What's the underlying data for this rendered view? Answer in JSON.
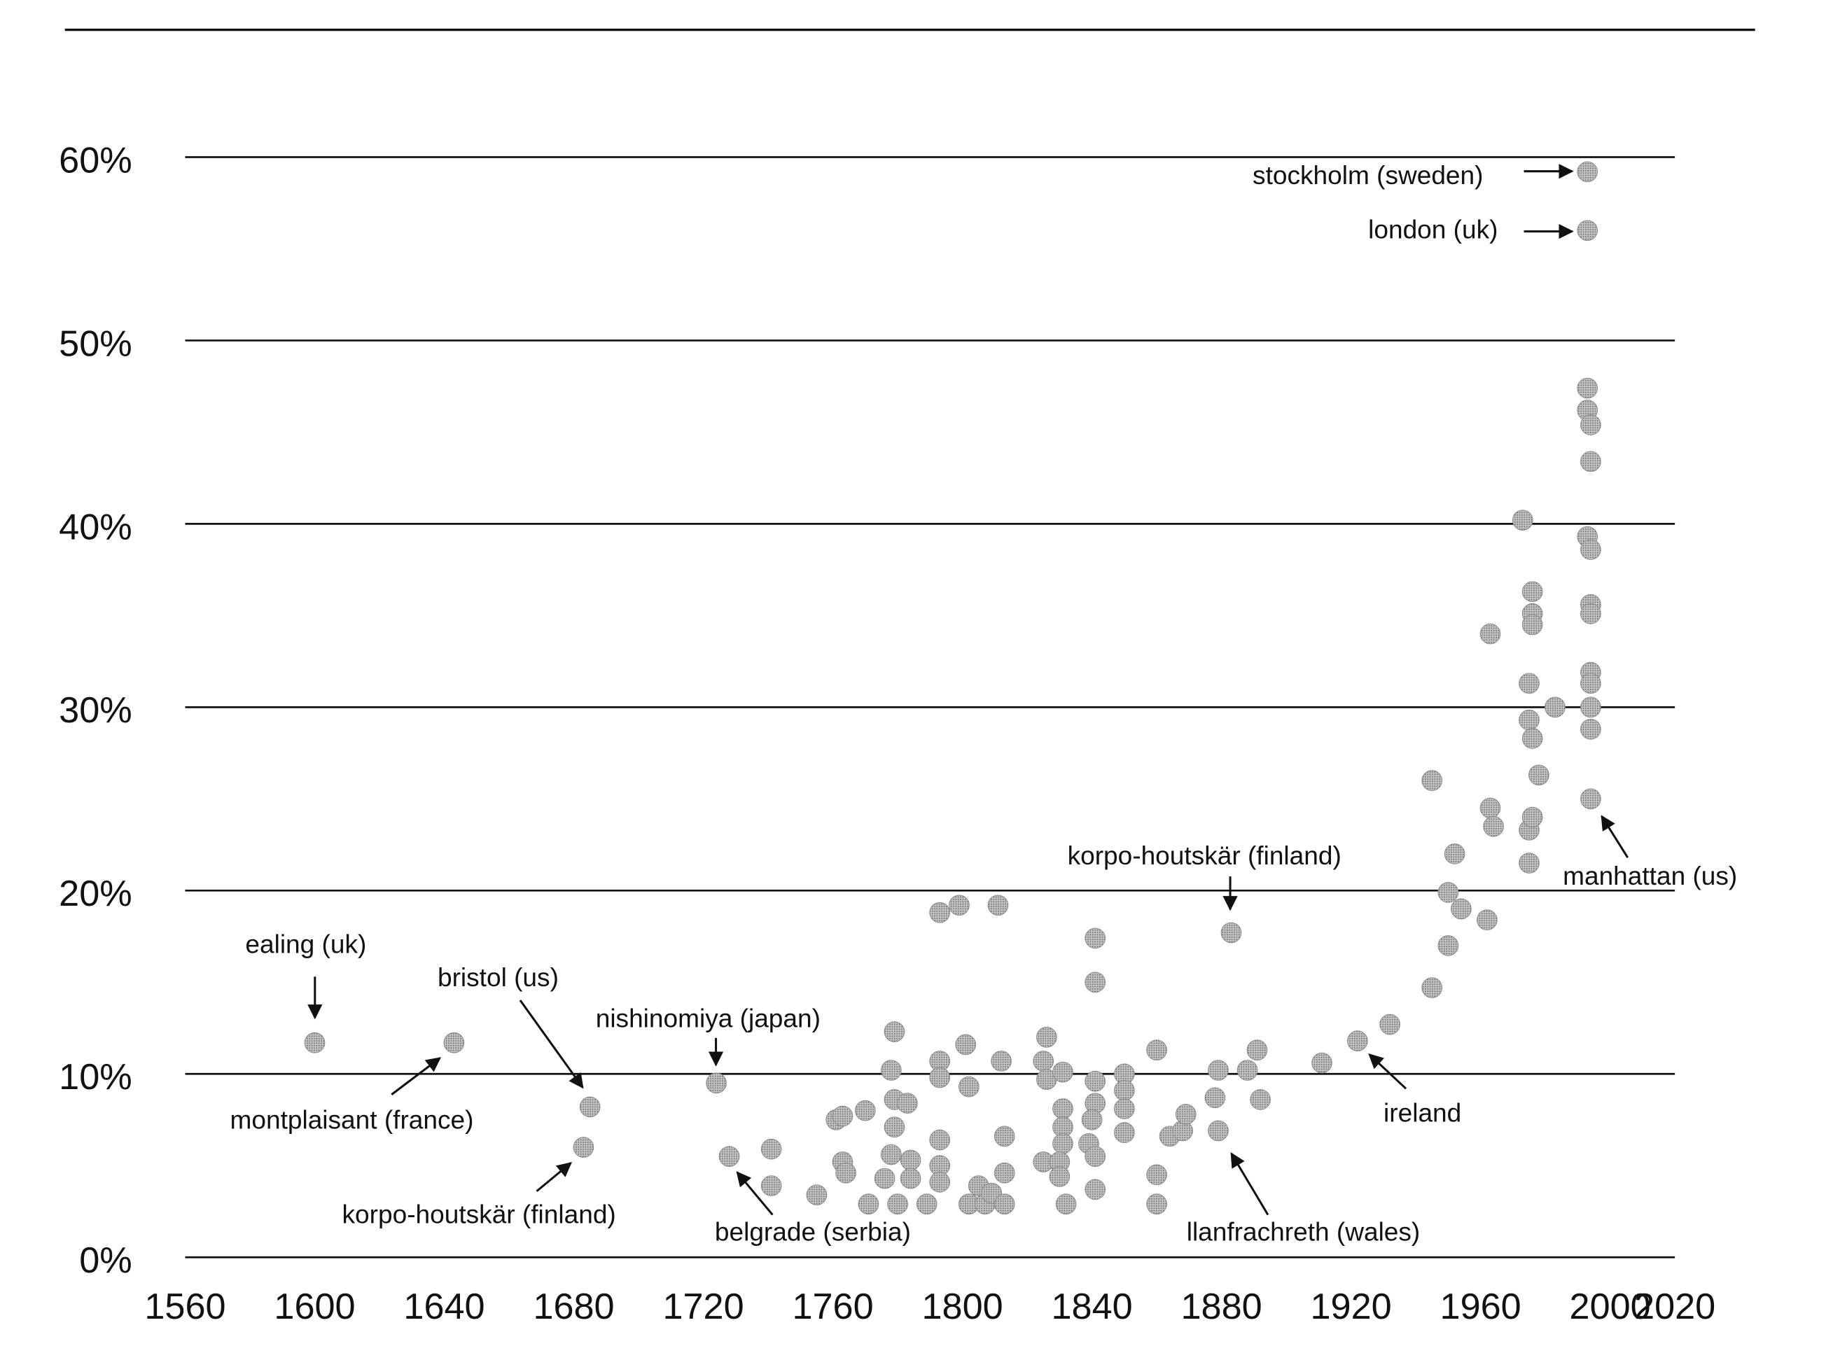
{
  "chart_data": {
    "type": "scatter",
    "title": "",
    "xlabel": "",
    "ylabel": "",
    "xlim": [
      1560,
      2020
    ],
    "ylim": [
      0,
      60
    ],
    "grid": true,
    "x_ticks": [
      "1560",
      "1600",
      "1640",
      "1680",
      "1720",
      "1760",
      "1800",
      "1840",
      "1880",
      "1920",
      "1960",
      "2000",
      "2020"
    ],
    "x_tick_values": [
      1560,
      1600,
      1640,
      1680,
      1720,
      1760,
      1800,
      1840,
      1880,
      1920,
      1960,
      2000,
      2020
    ],
    "y_ticks": [
      "0%",
      "10%",
      "20%",
      "30%",
      "40%",
      "50%",
      "60%"
    ],
    "y_tick_values": [
      0,
      10,
      20,
      30,
      40,
      50,
      60
    ],
    "point_color": "#9a9a9a",
    "points": [
      [
        1600,
        11.7
      ],
      [
        1643,
        11.7
      ],
      [
        1685,
        8.2
      ],
      [
        1683,
        6.0
      ],
      [
        1724,
        9.5
      ],
      [
        1728,
        5.5
      ],
      [
        1741,
        5.9
      ],
      [
        1741,
        3.9
      ],
      [
        1755,
        3.4
      ],
      [
        1761,
        7.5
      ],
      [
        1763,
        7.7
      ],
      [
        1763,
        5.2
      ],
      [
        1764,
        4.6
      ],
      [
        1770,
        8.0
      ],
      [
        1771,
        2.9
      ],
      [
        1776,
        4.3
      ],
      [
        1779,
        12.3
      ],
      [
        1778,
        10.2
      ],
      [
        1779,
        8.6
      ],
      [
        1779,
        7.1
      ],
      [
        1778,
        5.6
      ],
      [
        1780,
        2.9
      ],
      [
        1783,
        8.4
      ],
      [
        1784,
        5.3
      ],
      [
        1784,
        4.3
      ],
      [
        1789,
        2.9
      ],
      [
        1793,
        18.8
      ],
      [
        1793,
        10.7
      ],
      [
        1793,
        9.8
      ],
      [
        1793,
        6.4
      ],
      [
        1793,
        5.0
      ],
      [
        1793,
        4.1
      ],
      [
        1799,
        19.2
      ],
      [
        1801,
        11.6
      ],
      [
        1802,
        9.3
      ],
      [
        1802,
        2.9
      ],
      [
        1805,
        3.9
      ],
      [
        1807,
        2.9
      ],
      [
        1809,
        3.5
      ],
      [
        1811,
        19.2
      ],
      [
        1812,
        10.7
      ],
      [
        1813,
        4.6
      ],
      [
        1813,
        6.6
      ],
      [
        1813,
        2.9
      ],
      [
        1825,
        5.2
      ],
      [
        1825,
        10.7
      ],
      [
        1826,
        12.0
      ],
      [
        1826,
        9.7
      ],
      [
        1831,
        10.1
      ],
      [
        1831,
        8.1
      ],
      [
        1831,
        7.1
      ],
      [
        1831,
        6.2
      ],
      [
        1830,
        5.2
      ],
      [
        1830,
        4.4
      ],
      [
        1832,
        2.9
      ],
      [
        1841,
        17.4
      ],
      [
        1841,
        15.0
      ],
      [
        1841,
        9.6
      ],
      [
        1841,
        8.4
      ],
      [
        1840,
        7.5
      ],
      [
        1839,
        6.2
      ],
      [
        1841,
        5.5
      ],
      [
        1841,
        3.7
      ],
      [
        1850,
        10.0
      ],
      [
        1850,
        9.1
      ],
      [
        1850,
        8.1
      ],
      [
        1850,
        6.8
      ],
      [
        1860,
        11.3
      ],
      [
        1860,
        4.5
      ],
      [
        1860,
        2.9
      ],
      [
        1864,
        6.6
      ],
      [
        1868,
        6.9
      ],
      [
        1869,
        7.8
      ],
      [
        1878,
        8.7
      ],
      [
        1879,
        10.2
      ],
      [
        1879,
        6.9
      ],
      [
        1883,
        17.7
      ],
      [
        1888,
        10.2
      ],
      [
        1891,
        11.3
      ],
      [
        1892,
        8.6
      ],
      [
        1911,
        10.6
      ],
      [
        1922,
        11.8
      ],
      [
        1932,
        12.7
      ],
      [
        1945,
        26.0
      ],
      [
        1945,
        14.7
      ],
      [
        1950,
        17.0
      ],
      [
        1952,
        22.0
      ],
      [
        1950,
        19.9
      ],
      [
        1954,
        19.0
      ],
      [
        1962,
        18.4
      ],
      [
        1963,
        34.0
      ],
      [
        1963,
        24.5
      ],
      [
        1964,
        23.5
      ],
      [
        1973,
        40.2
      ],
      [
        1975,
        31.3
      ],
      [
        1975,
        29.3
      ],
      [
        1975,
        21.5
      ],
      [
        1975,
        23.3
      ],
      [
        1976,
        24.0
      ],
      [
        1976,
        36.3
      ],
      [
        1976,
        35.1
      ],
      [
        1976,
        34.5
      ],
      [
        1976,
        28.3
      ],
      [
        1978,
        26.3
      ],
      [
        1983,
        30.0
      ],
      [
        1993,
        59.2
      ],
      [
        1993,
        56.0
      ],
      [
        1993,
        47.4
      ],
      [
        1993,
        46.2
      ],
      [
        1994,
        45.4
      ],
      [
        1994,
        43.4
      ],
      [
        1993,
        39.3
      ],
      [
        1994,
        38.6
      ],
      [
        1994,
        35.6
      ],
      [
        1994,
        35.1
      ],
      [
        1994,
        31.9
      ],
      [
        1994,
        31.3
      ],
      [
        1994,
        30.0
      ],
      [
        1994,
        28.8
      ],
      [
        1994,
        25.0
      ]
    ],
    "annotations": [
      {
        "label": "stockholm (sweden)",
        "year": 1993,
        "value": 59.2
      },
      {
        "label": "london (uk)",
        "year": 1993,
        "value": 56.0
      },
      {
        "label": "manhattan (us)",
        "year": 1994,
        "value": 25.0
      },
      {
        "label": "korpo-houtskär (finland)",
        "year": 1883,
        "value": 17.7
      },
      {
        "label": "ealing (uk)",
        "year": 1600,
        "value": 11.7
      },
      {
        "label": "bristol (us)",
        "year": 1685,
        "value": 8.2
      },
      {
        "label": "nishinomiya (japan)",
        "year": 1724,
        "value": 9.5
      },
      {
        "label": "montplaisant (france)",
        "year": 1643,
        "value": 11.7
      },
      {
        "label": "korpo-houtskär (finland)",
        "year": 1683,
        "value": 6.0
      },
      {
        "label": "belgrade (serbia)",
        "year": 1728,
        "value": 5.5
      },
      {
        "label": "llanfrachreth (wales)",
        "year": 1879,
        "value": 6.9
      },
      {
        "label": "ireland",
        "year": 1922,
        "value": 11.8
      }
    ]
  }
}
